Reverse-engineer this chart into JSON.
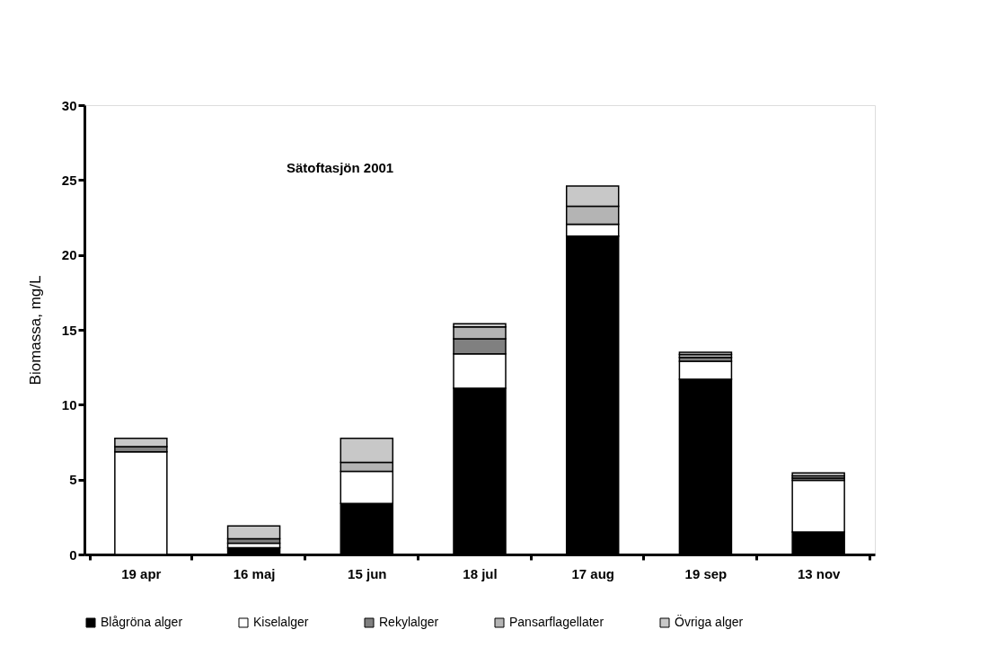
{
  "chart_data": {
    "type": "bar",
    "stacked": true,
    "ylabel": "Biomassa, mg/L",
    "annotations": [
      "Sätoftasjön 2001"
    ],
    "categories": [
      "19 apr",
      "16 maj",
      "15 jun",
      "18 jul",
      "17 aug",
      "19 sep",
      "13 nov"
    ],
    "ylim": [
      0,
      30
    ],
    "yticks": [
      0,
      5,
      10,
      15,
      20,
      25,
      30
    ],
    "grid": false,
    "legend": "bottom",
    "series": [
      {
        "name": "Blågröna alger",
        "color": "#000000",
        "values": [
          0,
          0.45,
          3.4,
          11.1,
          21.25,
          11.7,
          1.5
        ]
      },
      {
        "name": "Kiselalger",
        "color": "#ffffff",
        "values": [
          6.85,
          0.3,
          2.15,
          2.3,
          0.8,
          1.2,
          3.45
        ]
      },
      {
        "name": "Rekylalger",
        "color": "#808080",
        "values": [
          0.35,
          0.3,
          null,
          1.0,
          0,
          0.25,
          0.15
        ]
      },
      {
        "name": "Pansarflagellater",
        "color": "#b4b4b4",
        "values": [
          null,
          null,
          0.6,
          0.8,
          1.2,
          0.2,
          0.15
        ]
      },
      {
        "name": "Övriga alger",
        "color": "#c8c8c8",
        "values": [
          0.55,
          0.85,
          1.6,
          0.2,
          1.35,
          0.15,
          0.2
        ]
      }
    ]
  }
}
